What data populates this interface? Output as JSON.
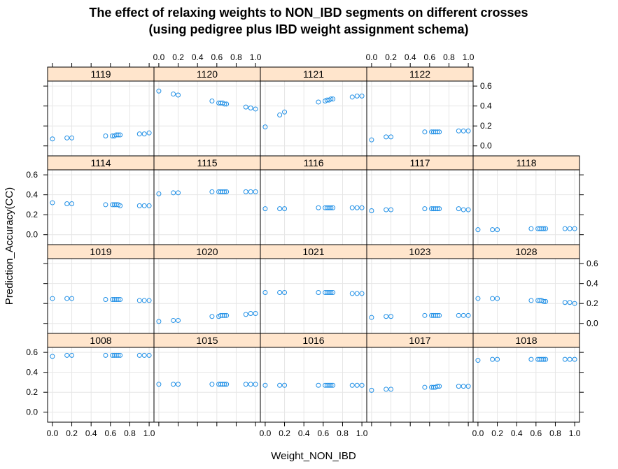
{
  "title_line1": "The effect of relaxing weights to NON_IBD segments on different crosses",
  "title_line2": "(using pedigree plus IBD weight assignment schema)",
  "colors": {
    "point": "#1f8fe6",
    "strip_fill": "#ffe5cc",
    "grid": "#e6e6e6",
    "frame": "#000000"
  },
  "chart_data": {
    "type": "scatter",
    "layout": "lattice 5 columns x 4 rows",
    "xlabel": "Weight_NON_IBD",
    "ylabel": "Prediction_Accuracy(CC)",
    "xlim": [
      -0.05,
      1.05
    ],
    "ylim": [
      -0.1,
      0.65
    ],
    "x_ticks": [
      0.0,
      0.2,
      0.4,
      0.6,
      0.8,
      1.0
    ],
    "x_tick_labels": [
      "0.0",
      "0.2",
      "0.4",
      "0.6",
      "0.8",
      "1.0"
    ],
    "y_ticks": [
      0.0,
      0.2,
      0.4,
      0.6
    ],
    "y_tick_labels": [
      "0.0",
      "0.2",
      "0.4",
      "0.6"
    ],
    "x": [
      0.0,
      0.15,
      0.2,
      0.55,
      0.62,
      0.64,
      0.66,
      0.68,
      0.7,
      0.9,
      0.95,
      1.0
    ],
    "panels": [
      {
        "label": "1119",
        "row": 0,
        "col": 0,
        "y": [
          0.07,
          0.08,
          0.08,
          0.1,
          0.1,
          0.1,
          0.11,
          0.11,
          0.11,
          0.12,
          0.12,
          0.13
        ]
      },
      {
        "label": "1120",
        "row": 0,
        "col": 1,
        "y": [
          0.55,
          0.52,
          0.51,
          0.45,
          0.43,
          0.43,
          0.43,
          0.42,
          0.42,
          0.39,
          0.38,
          0.37
        ]
      },
      {
        "label": "1121",
        "row": 0,
        "col": 2,
        "y": [
          0.19,
          0.31,
          0.34,
          0.44,
          0.45,
          0.46,
          0.46,
          0.47,
          0.47,
          0.49,
          0.5,
          0.5
        ]
      },
      {
        "label": "1122",
        "row": 0,
        "col": 3,
        "y": [
          0.06,
          0.09,
          0.09,
          0.14,
          0.14,
          0.14,
          0.14,
          0.14,
          0.14,
          0.15,
          0.15,
          0.15
        ]
      },
      {
        "label": "1114",
        "row": 1,
        "col": 0,
        "y": [
          0.32,
          0.31,
          0.31,
          0.3,
          0.3,
          0.3,
          0.3,
          0.3,
          0.29,
          0.29,
          0.29,
          0.29
        ]
      },
      {
        "label": "1115",
        "row": 1,
        "col": 1,
        "y": [
          0.41,
          0.42,
          0.42,
          0.43,
          0.43,
          0.43,
          0.43,
          0.43,
          0.43,
          0.43,
          0.43,
          0.43
        ]
      },
      {
        "label": "1116",
        "row": 1,
        "col": 2,
        "y": [
          0.26,
          0.26,
          0.26,
          0.27,
          0.27,
          0.27,
          0.27,
          0.27,
          0.27,
          0.27,
          0.27,
          0.27
        ]
      },
      {
        "label": "1117",
        "row": 1,
        "col": 3,
        "y": [
          0.24,
          0.25,
          0.25,
          0.26,
          0.26,
          0.26,
          0.26,
          0.26,
          0.26,
          0.26,
          0.25,
          0.25
        ]
      },
      {
        "label": "1118",
        "row": 1,
        "col": 4,
        "y": [
          0.05,
          0.05,
          0.05,
          0.06,
          0.06,
          0.06,
          0.06,
          0.06,
          0.06,
          0.06,
          0.06,
          0.06
        ]
      },
      {
        "label": "1019",
        "row": 2,
        "col": 0,
        "y": [
          0.25,
          0.25,
          0.25,
          0.24,
          0.24,
          0.24,
          0.24,
          0.24,
          0.24,
          0.23,
          0.23,
          0.23
        ]
      },
      {
        "label": "1020",
        "row": 2,
        "col": 1,
        "y": [
          0.02,
          0.03,
          0.03,
          0.07,
          0.07,
          0.08,
          0.08,
          0.08,
          0.08,
          0.09,
          0.1,
          0.1
        ]
      },
      {
        "label": "1021",
        "row": 2,
        "col": 2,
        "y": [
          0.31,
          0.31,
          0.31,
          0.31,
          0.31,
          0.31,
          0.31,
          0.31,
          0.31,
          0.3,
          0.3,
          0.3
        ]
      },
      {
        "label": "1023",
        "row": 2,
        "col": 3,
        "y": [
          0.06,
          0.07,
          0.07,
          0.08,
          0.08,
          0.08,
          0.08,
          0.08,
          0.08,
          0.08,
          0.08,
          0.08
        ]
      },
      {
        "label": "1028",
        "row": 2,
        "col": 4,
        "y": [
          0.25,
          0.25,
          0.25,
          0.23,
          0.23,
          0.23,
          0.23,
          0.22,
          0.22,
          0.21,
          0.21,
          0.2
        ]
      },
      {
        "label": "1008",
        "row": 3,
        "col": 0,
        "y": [
          0.56,
          0.57,
          0.57,
          0.57,
          0.57,
          0.57,
          0.57,
          0.57,
          0.57,
          0.57,
          0.57,
          0.57
        ]
      },
      {
        "label": "1015",
        "row": 3,
        "col": 1,
        "y": [
          0.28,
          0.28,
          0.28,
          0.28,
          0.28,
          0.28,
          0.28,
          0.28,
          0.28,
          0.28,
          0.28,
          0.28
        ]
      },
      {
        "label": "1016",
        "row": 3,
        "col": 2,
        "y": [
          0.27,
          0.27,
          0.27,
          0.27,
          0.27,
          0.27,
          0.27,
          0.27,
          0.27,
          0.27,
          0.27,
          0.27
        ]
      },
      {
        "label": "1017",
        "row": 3,
        "col": 3,
        "y": [
          0.22,
          0.23,
          0.23,
          0.25,
          0.25,
          0.25,
          0.25,
          0.26,
          0.26,
          0.26,
          0.26,
          0.26
        ]
      },
      {
        "label": "1018",
        "row": 3,
        "col": 4,
        "y": [
          0.52,
          0.53,
          0.53,
          0.53,
          0.53,
          0.53,
          0.53,
          0.53,
          0.53,
          0.53,
          0.53,
          0.53
        ]
      }
    ]
  }
}
